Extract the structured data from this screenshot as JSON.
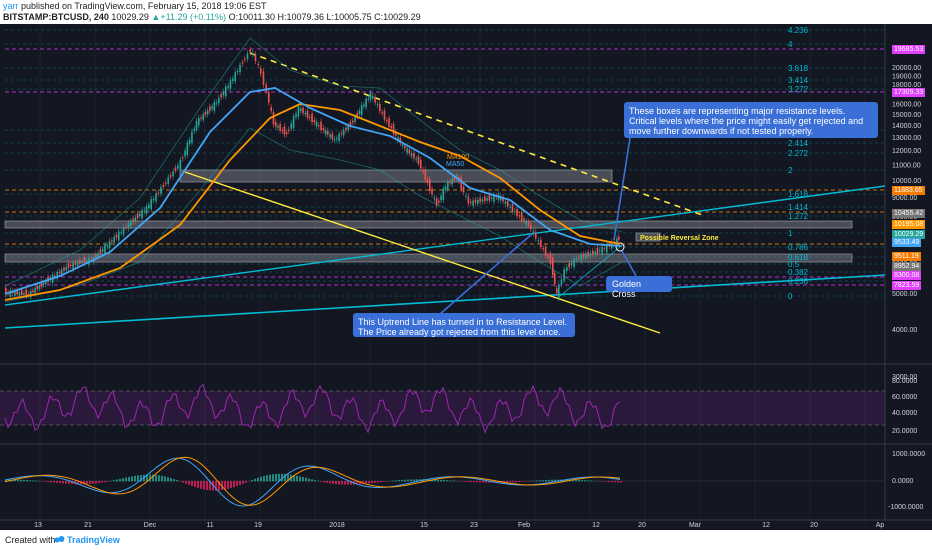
{
  "header": {
    "author": "yarr",
    "published": "published on TradingView.com, February 15, 2018 19:06 EST",
    "symbol": "BITSTAMP:BTCUSD, 240",
    "last": "10029.29",
    "change_icon": "triangle-up-icon",
    "change": "+11.29 (+0.11%)",
    "open_label": "O:",
    "open": "10011.30",
    "high_label": "H:",
    "high": "10079.36",
    "low_label": "L:",
    "low": "10005.75",
    "close_label": "C:",
    "close": "10029.29"
  },
  "annotations": {
    "resistance_boxes": "These boxes are representing major resistance levels. Critical levels where the price might easily get rejected and move further downwards if not tested properly.",
    "uptrend_line": "This Uptrend Line has turned in to Resistance Level. The Price already got rejected from this level once.",
    "golden_cross": "Golden Cross",
    "reversal_zone": "Possible Reversal Zone",
    "ma100": "MA100",
    "ma50": "MA50"
  },
  "fib_levels": [
    {
      "label": "4.236",
      "value": 4.236
    },
    {
      "label": "4",
      "value": 4
    },
    {
      "label": "3.618",
      "value": 3.618
    },
    {
      "label": "3.414",
      "value": 3.414
    },
    {
      "label": "3.272",
      "value": 3.272
    },
    {
      "label": "2.618",
      "value": 2.618
    },
    {
      "label": "2.414",
      "value": 2.414
    },
    {
      "label": "2.272",
      "value": 2.272
    },
    {
      "label": "2",
      "value": 2
    },
    {
      "label": "1.618",
      "value": 1.618
    },
    {
      "label": "1.414",
      "value": 1.414
    },
    {
      "label": "1.272",
      "value": 1.272
    },
    {
      "label": "1",
      "value": 1
    },
    {
      "label": "0.786",
      "value": 0.786
    },
    {
      "label": "0.618",
      "value": 0.618
    },
    {
      "label": "0.5",
      "value": 0.5
    },
    {
      "label": "0.382",
      "value": 0.382
    },
    {
      "label": "0.236",
      "value": 0.236
    },
    {
      "label": "0",
      "value": 0
    }
  ],
  "price_axis": {
    "ticks": [
      "20000.00",
      "19000.00",
      "18000.00",
      "17000.00",
      "16000.00",
      "15000.00",
      "14000.00",
      "13000.00",
      "12000.00",
      "11000.00",
      "10000.00",
      "9000.00",
      "8000.00",
      "7000.00",
      "6000.00",
      "5000.00",
      "4000.00",
      "3000.00"
    ],
    "tags": [
      {
        "label": "19685.53",
        "color": "#e040fb"
      },
      {
        "label": "17309.33",
        "color": "#e040fb"
      },
      {
        "label": "11883.65",
        "color": "#f57c00"
      },
      {
        "label": "10455.42",
        "color": "#757575"
      },
      {
        "label": "10195.08",
        "color": "#ff9800"
      },
      {
        "label": "10029.29",
        "color": "#26a69a"
      },
      {
        "label": "9533.49",
        "color": "#42a5f5"
      },
      {
        "label": "9511.19",
        "color": "#f57c00"
      },
      {
        "label": "8952.94",
        "color": "#757575"
      },
      {
        "label": "8300.08",
        "color": "#e040fb"
      },
      {
        "label": "7823.59",
        "color": "#e040fb"
      }
    ]
  },
  "rsi_axis": [
    "80.0000",
    "60.0000",
    "40.0000",
    "20.0000"
  ],
  "macd_axis": [
    "1000.0000",
    "0.0000",
    "-1000.0000"
  ],
  "time_axis": [
    "13",
    "21",
    "Dec",
    "11",
    "19",
    "2018",
    "15",
    "23",
    "Feb",
    "12",
    "20",
    "Mar",
    "12",
    "20",
    "Ap"
  ],
  "footer": {
    "created_with": "Created with",
    "brand": "TradingView",
    "logo": "tradingview-logo-icon"
  },
  "colors": {
    "background": "#131722",
    "up": "#26a69a",
    "fib": "#00bcd4",
    "ma100": "#ff9800",
    "ma50": "#42a5f5",
    "trend": "#ffeb3b",
    "rsi": "#9c27b0",
    "annotation": "#3a6fd8"
  }
}
